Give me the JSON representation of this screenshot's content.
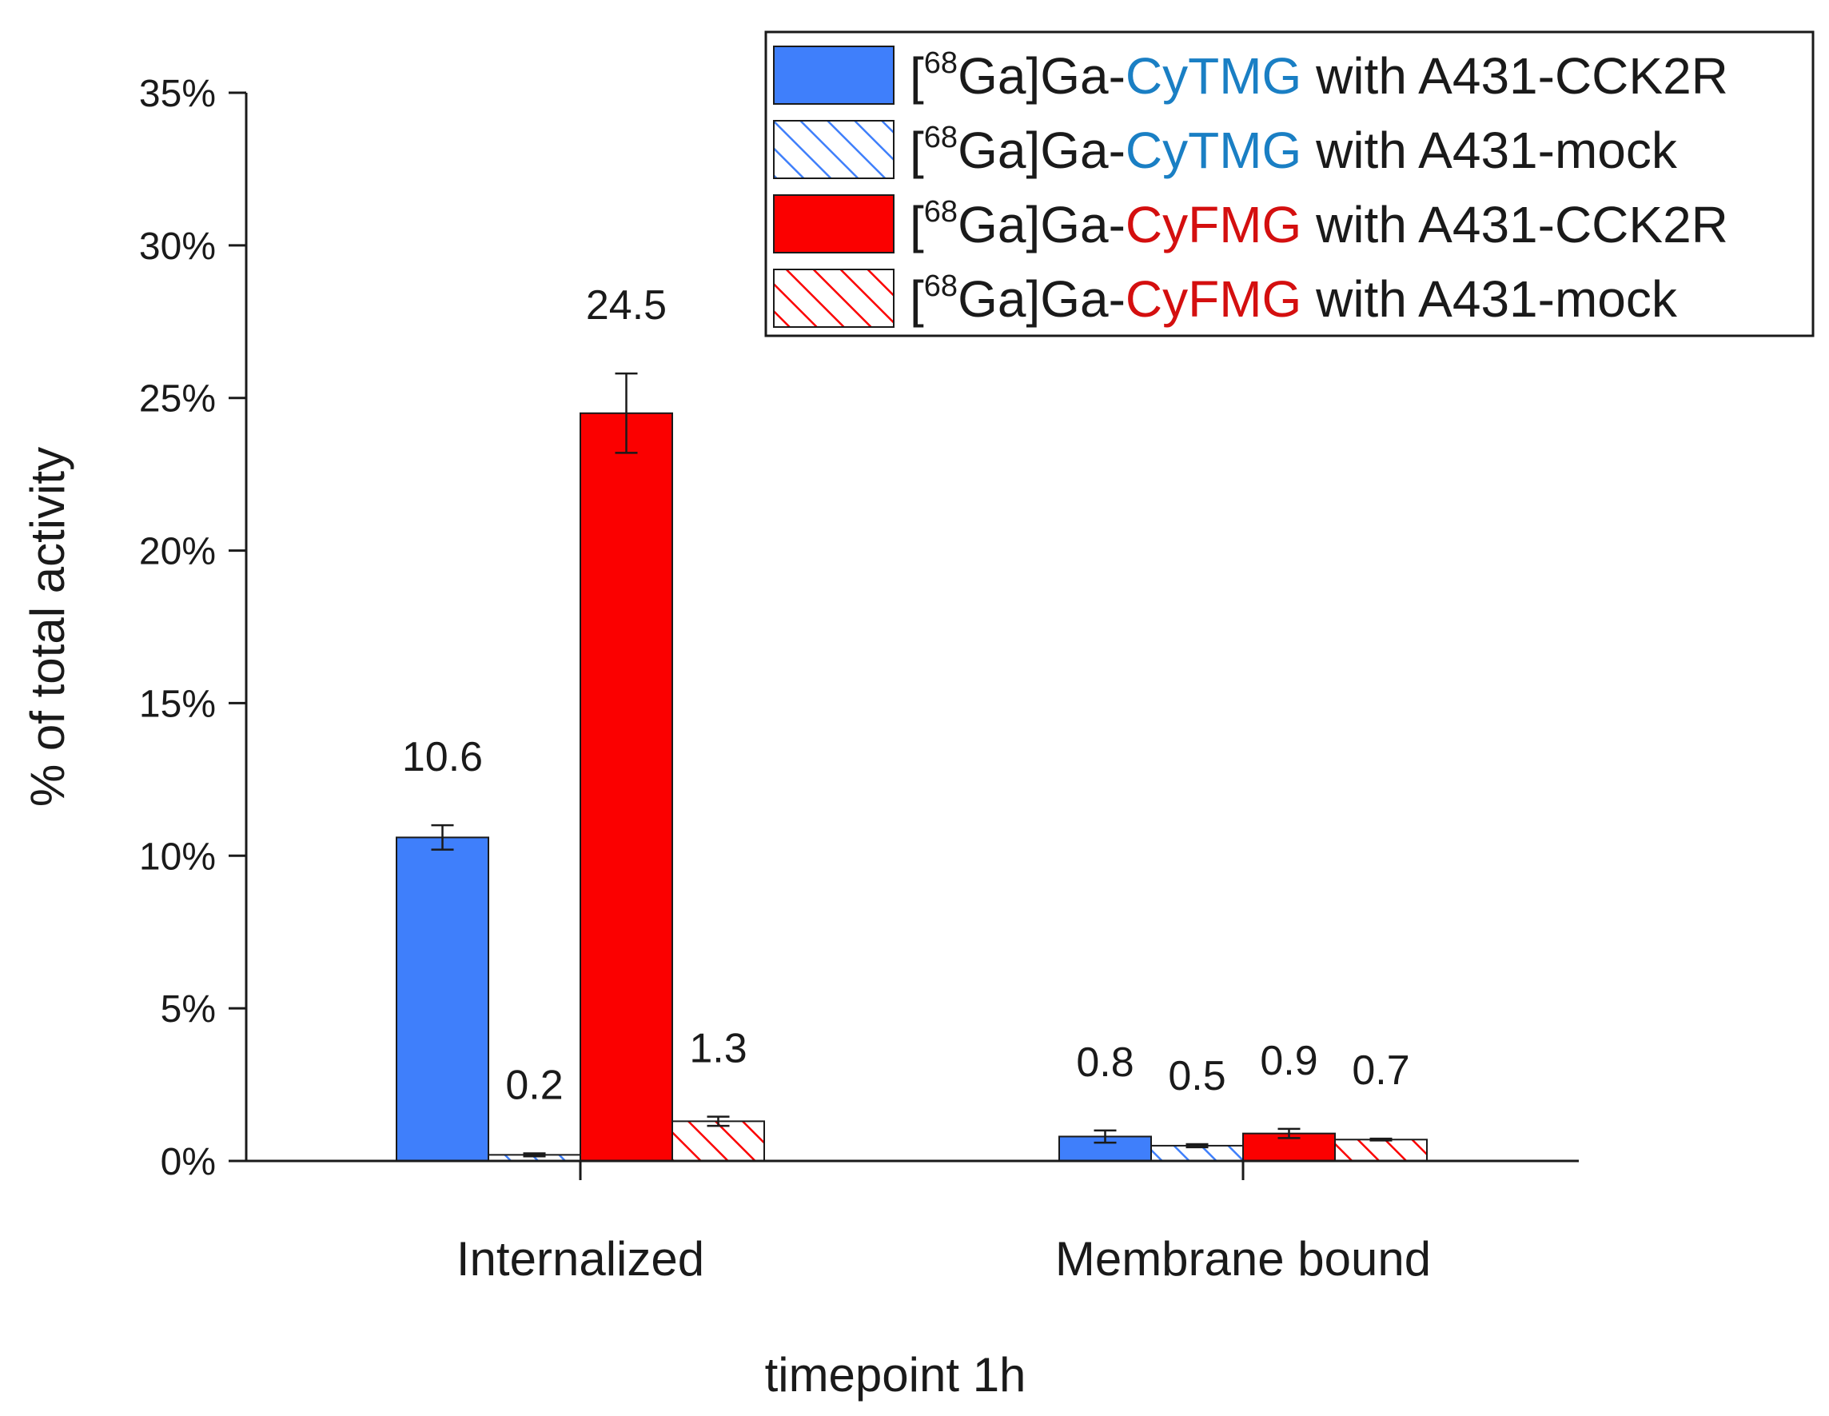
{
  "chart_data": {
    "type": "bar",
    "title": "",
    "xlabel": "timepoint 1h",
    "ylabel": "% of total activity",
    "ylim": [
      0,
      35
    ],
    "yticks": [
      0,
      5,
      10,
      15,
      20,
      25,
      30,
      35
    ],
    "ytick_labels": [
      "0%",
      "5%",
      "10%",
      "15%",
      "20%",
      "25%",
      "30%",
      "35%"
    ],
    "categories": [
      "Internalized",
      "Membrane bound"
    ],
    "legend_position": "top-right",
    "series": [
      {
        "name": "[68Ga]Ga-CyTMG with A431-CCK2R",
        "legend": {
          "prefix": "[",
          "sup": "68",
          "middle": "Ga]Ga-",
          "compound": "CyTMG",
          "suffix": " with A431-CCK2R"
        },
        "values": [
          10.6,
          0.8
        ],
        "errors": [
          0.4,
          0.2
        ],
        "labels": [
          "10.6",
          "0.8"
        ],
        "color": "#3f7ffb",
        "compound_color": "#1a7fc4",
        "pattern": "solid"
      },
      {
        "name": "[68Ga]Ga-CyTMG with A431-mock",
        "legend": {
          "prefix": "[",
          "sup": "68",
          "middle": "Ga]Ga-",
          "compound": "CyTMG",
          "suffix": " with A431-mock"
        },
        "values": [
          0.2,
          0.5
        ],
        "errors": [
          0.05,
          0.05
        ],
        "labels": [
          "0.2",
          "0.5"
        ],
        "color": "#3f7ffb",
        "compound_color": "#1a7fc4",
        "pattern": "hatch"
      },
      {
        "name": "[68Ga]Ga-CyFMG with A431-CCK2R",
        "legend": {
          "prefix": "[",
          "sup": "68",
          "middle": "Ga]Ga-",
          "compound": "CyFMG",
          "suffix": " with A431-CCK2R"
        },
        "values": [
          24.5,
          0.9
        ],
        "errors": [
          1.3,
          0.15
        ],
        "labels": [
          "24.5",
          "0.9"
        ],
        "color": "#fb0000",
        "compound_color": "#d40f0f",
        "pattern": "solid"
      },
      {
        "name": "[68Ga]Ga-CyFMG with A431-mock",
        "legend": {
          "prefix": "[",
          "sup": "68",
          "middle": "Ga]Ga-",
          "compound": "CyFMG",
          "suffix": " with A431-mock"
        },
        "values": [
          1.3,
          0.7
        ],
        "errors": [
          0.15,
          0.03
        ],
        "labels": [
          "1.3",
          "0.7"
        ],
        "color": "#fb0000",
        "compound_color": "#d40f0f",
        "pattern": "hatch"
      }
    ]
  }
}
